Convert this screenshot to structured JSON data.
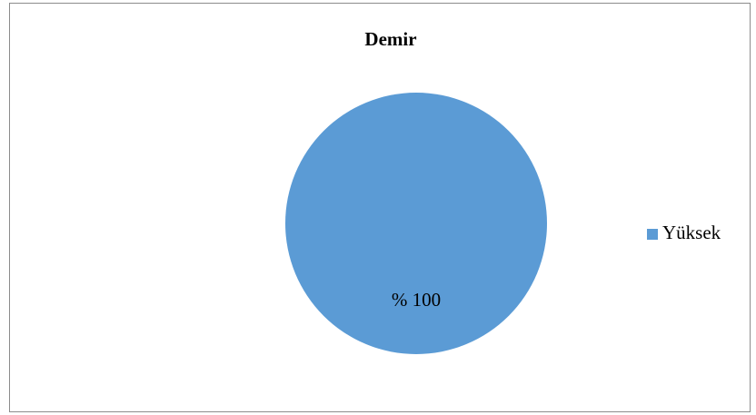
{
  "chart_data": {
    "type": "pie",
    "title": "Demir",
    "categories": [
      "Yüksek"
    ],
    "values": [
      100
    ],
    "value_labels": [
      "% 100"
    ],
    "colors": [
      "#5b9bd5"
    ],
    "legend": "right"
  }
}
